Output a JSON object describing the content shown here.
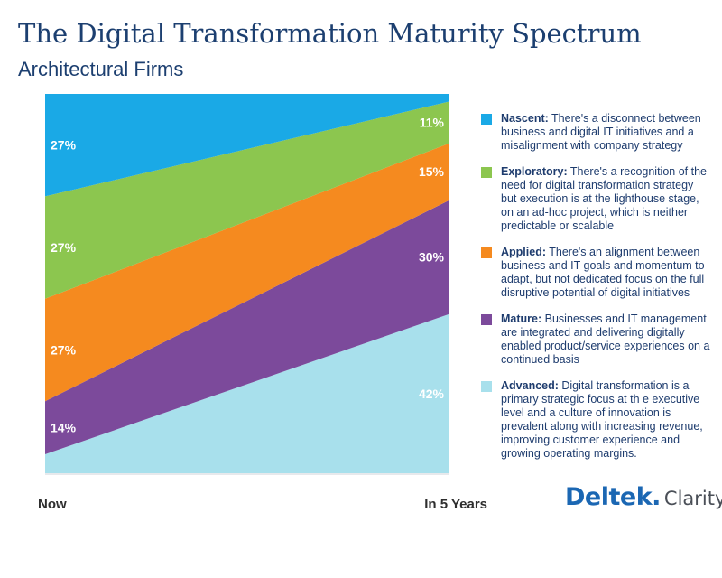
{
  "header": {
    "title": "The Digital Transformation Maturity Spectrum",
    "subtitle": "Architectural Firms"
  },
  "chart_data": {
    "type": "area",
    "stacked": true,
    "categories": [
      "Now",
      "In 5 Years"
    ],
    "ylim": [
      0,
      100
    ],
    "grid": false,
    "legend_position": "right",
    "series": [
      {
        "name": "Advanced",
        "values": [
          5,
          42
        ],
        "labels": [
          "",
          "42%"
        ],
        "color": "#a8e0ec"
      },
      {
        "name": "Mature",
        "values": [
          14,
          30
        ],
        "labels": [
          "14%",
          "30%"
        ],
        "color": "#7c4a9b"
      },
      {
        "name": "Applied",
        "values": [
          27,
          15
        ],
        "labels": [
          "27%",
          "15%"
        ],
        "color": "#f58a1f"
      },
      {
        "name": "Exploratory",
        "values": [
          27,
          11
        ],
        "labels": [
          "27%",
          "11%"
        ],
        "color": "#8cc64f"
      },
      {
        "name": "Nascent",
        "values": [
          27,
          2
        ],
        "labels": [
          "27%",
          ""
        ],
        "color": "#1aa9e6"
      }
    ]
  },
  "legend": {
    "items": [
      {
        "name": "Nascent:",
        "text": " There's a disconnect between business and digital IT initiatives and a misalignment with company strategy",
        "color": "#1aa9e6"
      },
      {
        "name": "Exploratory:",
        "text": " There's a recognition of the need for digital transformation strategy but execution is at the lighthouse stage, on an ad-hoc project, which is neither predictable or scalable",
        "color": "#8cc64f"
      },
      {
        "name": "Applied:",
        "text": " There's an alignment between business and IT goals and momentum to adapt, but not dedicated focus on the full disruptive potential of digital initiatives",
        "color": "#f58a1f"
      },
      {
        "name": "Mature:",
        "text": " Businesses and IT management are integrated and delivering digitally enabled product/service experiences on a continued basis",
        "color": "#7c4a9b"
      },
      {
        "name": "Advanced:",
        "text": " Digital transformation is a primary strategic focus at th e executive level and a culture of innovation is prevalent along with increasing revenue, improving customer experience and growing operating margins.",
        "color": "#a8e0ec"
      }
    ]
  },
  "brand": {
    "main": "Deltek.",
    "sub": "Clarity"
  }
}
